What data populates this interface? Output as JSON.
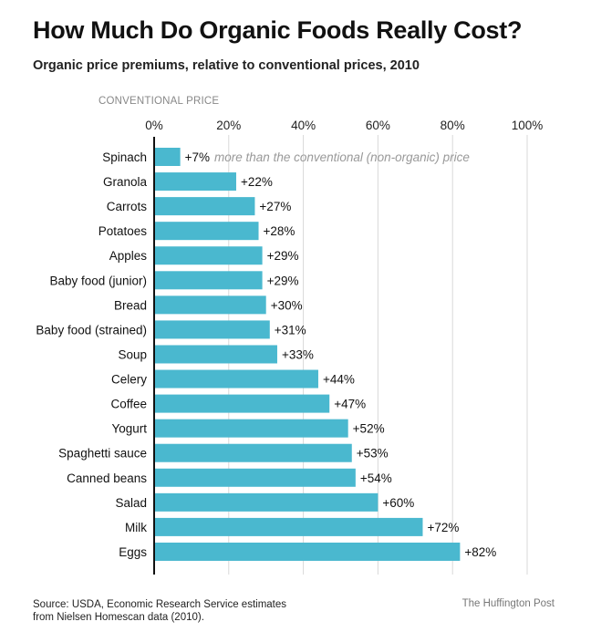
{
  "title": "How Much Do Organic Foods Really Cost?",
  "subtitle": "Organic price premiums, relative to conventional prices, 2010",
  "source_line1": "Source: USDA, Economic Research Service estimates",
  "source_line2": "from Nielsen Homescan data (2010).",
  "credit": "The Huffington Post",
  "colors": {
    "bar": "#4ab8cf",
    "baseline": "#111111",
    "grid": "#d9d9d9"
  },
  "chart_data": {
    "type": "bar",
    "orientation": "horizontal",
    "baseline_label": "CONVENTIONAL PRICE",
    "xlim": [
      0,
      100
    ],
    "x_ticks": [
      0,
      20,
      40,
      60,
      80,
      100
    ],
    "x_tick_labels": [
      "0%",
      "20%",
      "40%",
      "60%",
      "80%",
      "100%"
    ],
    "grid": true,
    "categories": [
      "Spinach",
      "Granola",
      "Carrots",
      "Potatoes",
      "Apples",
      "Baby food (junior)",
      "Bread",
      "Baby food (strained)",
      "Soup",
      "Celery",
      "Coffee",
      "Yogurt",
      "Spaghetti sauce",
      "Canned beans",
      "Salad",
      "Milk",
      "Eggs"
    ],
    "values": [
      7,
      22,
      27,
      28,
      29,
      29,
      30,
      31,
      33,
      44,
      47,
      52,
      53,
      54,
      60,
      72,
      82
    ],
    "value_labels": [
      "+7%",
      "+22%",
      "+27%",
      "+28%",
      "+29%",
      "+29%",
      "+30%",
      "+31%",
      "+33%",
      "+44%",
      "+47%",
      "+52%",
      "+53%",
      "+54%",
      "+60%",
      "+72%",
      "+82%"
    ],
    "annotation": "more than the conventional (non-organic) price"
  }
}
